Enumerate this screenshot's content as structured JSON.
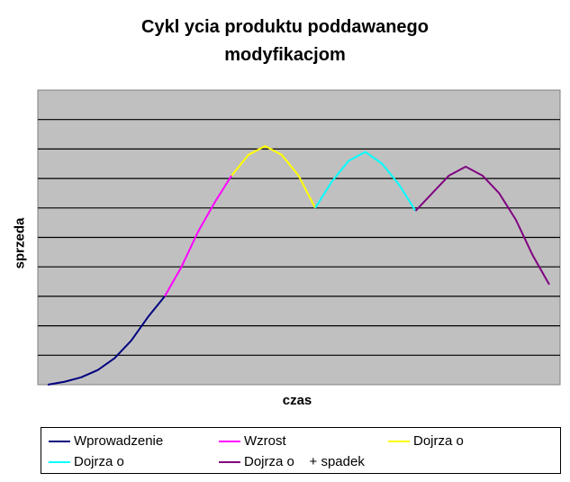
{
  "chart_data": {
    "type": "line",
    "title_line1": "Cykl   ycia produktu poddawanego",
    "title_line2": "modyfikacjom",
    "xlabel": "czas",
    "ylabel": "sprzeda",
    "grid": true,
    "legend_placement": "bottom",
    "ylim": [
      0,
      10
    ],
    "series": [
      {
        "name": "Wprowadzenie",
        "color": "#000080",
        "points": [
          [
            0,
            0
          ],
          [
            1,
            0.1
          ],
          [
            2,
            0.25
          ],
          [
            3,
            0.5
          ],
          [
            4,
            0.9
          ],
          [
            5,
            1.5
          ],
          [
            6,
            2.3
          ],
          [
            7,
            3.0
          ]
        ]
      },
      {
        "name": "Wzrost",
        "color": "#ff00ff",
        "points": [
          [
            7,
            3.0
          ],
          [
            8,
            4.0
          ],
          [
            9,
            5.2
          ],
          [
            10,
            6.2
          ],
          [
            11,
            7.1
          ]
        ]
      },
      {
        "name": "Dojrza o",
        "color": "#ffff00",
        "points": [
          [
            11,
            7.1
          ],
          [
            12,
            7.8
          ],
          [
            13,
            8.1
          ],
          [
            14,
            7.8
          ],
          [
            15,
            7.1
          ],
          [
            16,
            6.0
          ]
        ]
      },
      {
        "name": "Dojrza o",
        "color": "#00ffff",
        "points": [
          [
            16,
            6.0
          ],
          [
            17,
            6.9
          ],
          [
            18,
            7.6
          ],
          [
            19,
            7.9
          ],
          [
            20,
            7.5
          ],
          [
            21,
            6.8
          ],
          [
            22,
            5.9
          ]
        ]
      },
      {
        "name": "Dojrza o    + spadek",
        "color": "#800080",
        "points": [
          [
            22,
            5.9
          ],
          [
            23,
            6.5
          ],
          [
            24,
            7.1
          ],
          [
            25,
            7.4
          ],
          [
            26,
            7.1
          ],
          [
            27,
            6.5
          ],
          [
            28,
            5.6
          ],
          [
            29,
            4.4
          ],
          [
            30,
            3.4
          ]
        ]
      }
    ]
  }
}
